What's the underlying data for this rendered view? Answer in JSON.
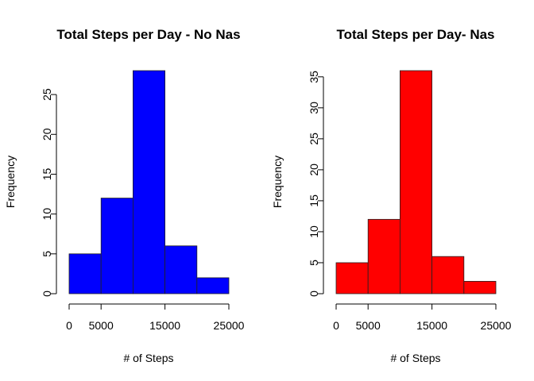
{
  "chart_data": [
    {
      "type": "bar",
      "title": "Total Steps per Day - No Nas",
      "xlabel": "# of Steps",
      "ylabel": "Frequency",
      "bin_edges": [
        0,
        5000,
        10000,
        15000,
        20000,
        25000
      ],
      "values": [
        5,
        12,
        28,
        6,
        2
      ],
      "color": "#0000ff",
      "xlim": [
        0,
        25000
      ],
      "ylim": [
        0,
        28
      ],
      "xticks": [
        0,
        5000,
        15000,
        25000
      ],
      "xtick_labels": [
        "0",
        "5000",
        "15000",
        "25000"
      ],
      "yticks": [
        0,
        5,
        10,
        15,
        20,
        25
      ],
      "ytick_labels": [
        "0",
        "5",
        "10",
        "15",
        "20",
        "25"
      ],
      "grid": false
    },
    {
      "type": "bar",
      "title": "Total Steps per Day- Nas",
      "xlabel": "# of Steps",
      "ylabel": "Frequency",
      "bin_edges": [
        0,
        5000,
        10000,
        15000,
        20000,
        25000
      ],
      "values": [
        5,
        12,
        36,
        6,
        2
      ],
      "color": "#ff0000",
      "xlim": [
        0,
        25000
      ],
      "ylim": [
        0,
        36
      ],
      "xticks": [
        0,
        5000,
        15000,
        25000
      ],
      "xtick_labels": [
        "0",
        "5000",
        "15000",
        "25000"
      ],
      "yticks": [
        0,
        5,
        10,
        15,
        20,
        25,
        30,
        35
      ],
      "ytick_labels": [
        "0",
        "5",
        "10",
        "15",
        "20",
        "25",
        "30",
        "35"
      ],
      "grid": false
    }
  ]
}
